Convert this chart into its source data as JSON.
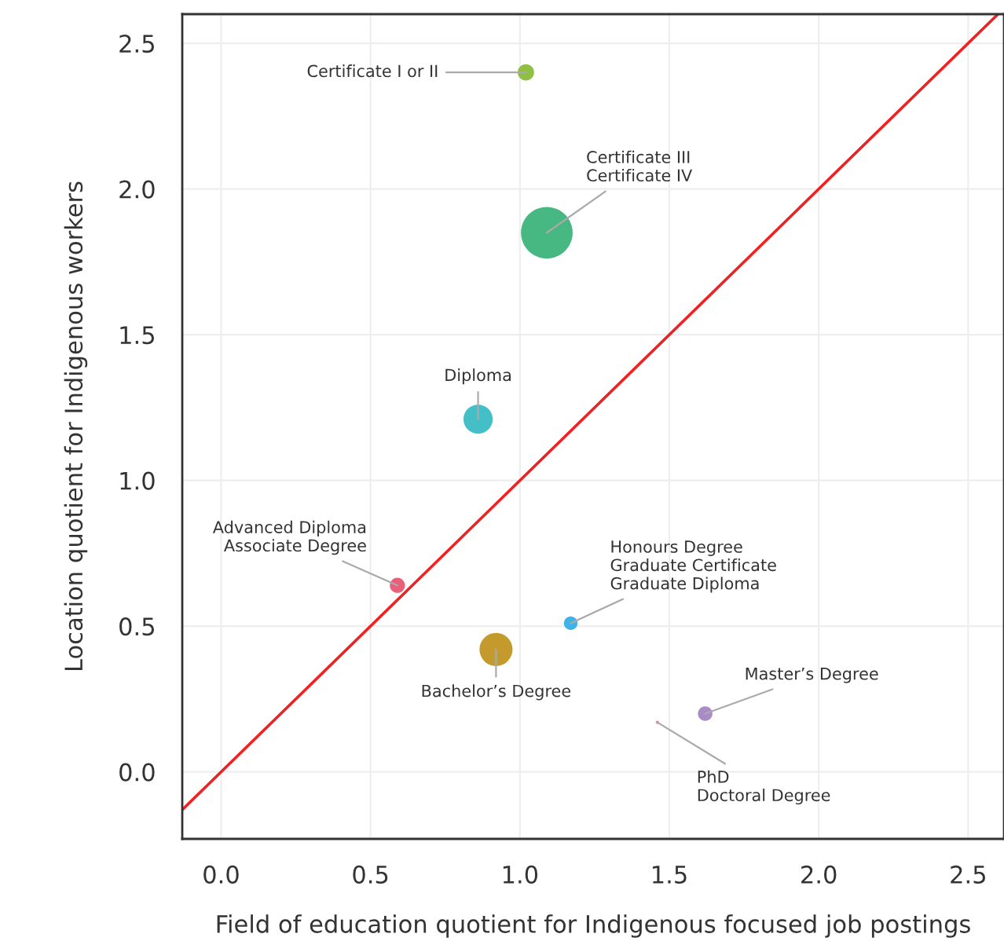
{
  "chart_data": {
    "type": "bubble",
    "xlabel": "Field of education quotient for Indigenous focused job postings",
    "ylabel": "Location quotient for Indigenous workers",
    "xlim": [
      -0.13,
      2.62
    ],
    "ylim": [
      -0.23,
      2.6
    ],
    "xticks": [
      {
        "value": 0,
        "label": "0.0"
      },
      0.5,
      {
        "value": 1,
        "label": "1.0"
      },
      1.5,
      {
        "value": 2,
        "label": "2.0"
      },
      2.5
    ],
    "yticks": [
      {
        "value": 0,
        "label": "0.0"
      },
      0.5,
      {
        "value": 1,
        "label": "1.0"
      },
      1.5,
      {
        "value": 2,
        "label": "2.0"
      },
      2.5
    ],
    "grid": true,
    "legend": false,
    "series": [
      {
        "name": "Certificate I or II",
        "color": "#8fbf45",
        "x": [
          1.02
        ],
        "values": [
          2.4
        ],
        "sizes": [
          0.1
        ]
      },
      {
        "name": "Certificate III\nCertificate IV",
        "color": "#47b881",
        "x": [
          1.09
        ],
        "values": [
          1.85
        ],
        "sizes": [
          1
        ]
      },
      {
        "name": "Diploma",
        "color": "#44bfc8",
        "x": [
          0.86
        ],
        "values": [
          1.21
        ],
        "sizes": [
          0.32
        ]
      },
      {
        "name": "Advanced Diploma\nAssociate Degree",
        "color": "#e8607a",
        "x": [
          0.59
        ],
        "values": [
          0.64
        ],
        "sizes": [
          0.086
        ]
      },
      {
        "name": "Honours Degree\nGraduate Certificate\nGraduate Diploma",
        "color": "#3fb3e8",
        "x": [
          1.17
        ],
        "values": [
          0.51
        ],
        "sizes": [
          0.069
        ]
      },
      {
        "name": "Bachelor’s Degree",
        "color": "#c49a2c",
        "x": [
          0.92
        ],
        "values": [
          0.42
        ],
        "sizes": [
          0.41
        ]
      },
      {
        "name": "Master’s Degree",
        "color": "#a98bc6",
        "x": [
          1.62
        ],
        "values": [
          0.2
        ],
        "sizes": [
          0.079
        ]
      },
      {
        "name": "PhD\nDoctoral Degree",
        "color": "#e880b0",
        "x": [
          1.46
        ],
        "values": [
          0.17
        ],
        "sizes": [
          0.004
        ]
      },
      {
        "type": "line",
        "color": "#ee2222",
        "x": [
          -0.13,
          2.6
        ],
        "values": [
          -0.13,
          2.6
        ]
      }
    ]
  }
}
